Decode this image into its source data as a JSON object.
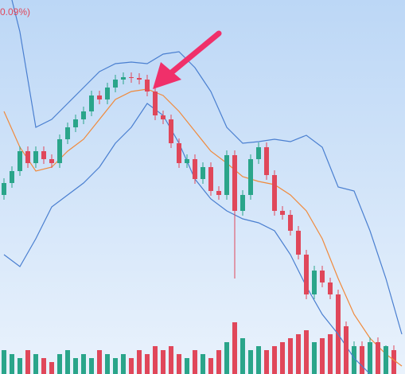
{
  "chart_data": {
    "type": "candlestick",
    "title": "0.09%)",
    "ylim": [
      0,
      470
    ],
    "up_color": "#2aa58a",
    "down_color": "#e0475a",
    "open": [
      225,
      240,
      255,
      280,
      265,
      280,
      270,
      265,
      295,
      310,
      320,
      330,
      350,
      345,
      360,
      370,
      373,
      372,
      370,
      355,
      325,
      320,
      290,
      265,
      270,
      245,
      260,
      230,
      225,
      275,
      205,
      225,
      270,
      285,
      250,
      205,
      200,
      180,
      150,
      100,
      130,
      115,
      100,
      60,
      30,
      35,
      25,
      40,
      20,
      30
    ],
    "close": [
      240,
      255,
      280,
      265,
      280,
      270,
      265,
      295,
      310,
      320,
      330,
      350,
      345,
      360,
      370,
      373,
      372,
      370,
      355,
      325,
      320,
      290,
      265,
      270,
      245,
      260,
      230,
      225,
      275,
      205,
      225,
      270,
      285,
      250,
      205,
      200,
      180,
      150,
      100,
      130,
      115,
      100,
      60,
      30,
      35,
      25,
      40,
      20,
      30,
      25
    ],
    "high": [
      246,
      261,
      286,
      286,
      286,
      286,
      276,
      301,
      316,
      326,
      336,
      356,
      356,
      366,
      376,
      379,
      379,
      378,
      376,
      361,
      331,
      326,
      296,
      276,
      276,
      266,
      266,
      236,
      281,
      281,
      231,
      276,
      291,
      291,
      256,
      211,
      206,
      186,
      156,
      136,
      136,
      121,
      106,
      66,
      41,
      41,
      46,
      46,
      36,
      36
    ],
    "low": [
      219,
      234,
      249,
      259,
      259,
      264,
      259,
      259,
      289,
      304,
      314,
      324,
      339,
      339,
      354,
      364,
      366,
      364,
      349,
      319,
      314,
      284,
      259,
      259,
      239,
      239,
      224,
      219,
      219,
      120,
      199,
      219,
      264,
      244,
      199,
      194,
      174,
      144,
      94,
      94,
      109,
      94,
      54,
      24,
      24,
      19,
      19,
      14,
      14,
      19
    ],
    "bands": {
      "x": [
        0,
        2,
        4,
        6,
        8,
        10,
        12,
        14,
        16,
        18,
        20,
        22,
        24,
        26,
        28,
        30,
        32,
        34,
        36,
        38,
        40,
        42,
        44,
        46,
        48,
        50
      ],
      "series": [
        {
          "color": "#4a7fd0",
          "values": [
            510,
            430,
            310,
            320,
            340,
            360,
            380,
            390,
            392,
            390,
            402,
            405,
            385,
            355,
            310,
            290,
            292,
            295,
            292,
            300,
            285,
            235,
            230,
            180,
            120,
            50
          ]
        },
        {
          "color": "#f08a3c",
          "values": [
            330,
            285,
            255,
            260,
            280,
            295,
            320,
            345,
            355,
            358,
            350,
            330,
            305,
            280,
            265,
            248,
            242,
            238,
            225,
            205,
            170,
            120,
            75,
            45,
            25,
            10
          ]
        },
        {
          "color": "#4a7fd0",
          "values": [
            150,
            135,
            170,
            210,
            225,
            240,
            260,
            290,
            310,
            340,
            325,
            290,
            245,
            220,
            205,
            195,
            190,
            180,
            150,
            110,
            75,
            50,
            20,
            0,
            -10,
            -20
          ]
        }
      ]
    },
    "volume": {
      "ylim": [
        0,
        100
      ],
      "values": [
        30,
        25,
        20,
        30,
        25,
        20,
        15,
        25,
        30,
        20,
        25,
        20,
        30,
        25,
        20,
        25,
        20,
        30,
        25,
        35,
        30,
        35,
        25,
        20,
        30,
        25,
        20,
        30,
        40,
        65,
        45,
        30,
        35,
        30,
        35,
        40,
        45,
        50,
        55,
        40,
        45,
        50,
        60,
        45,
        30,
        35,
        30,
        40,
        35,
        30
      ]
    }
  }
}
